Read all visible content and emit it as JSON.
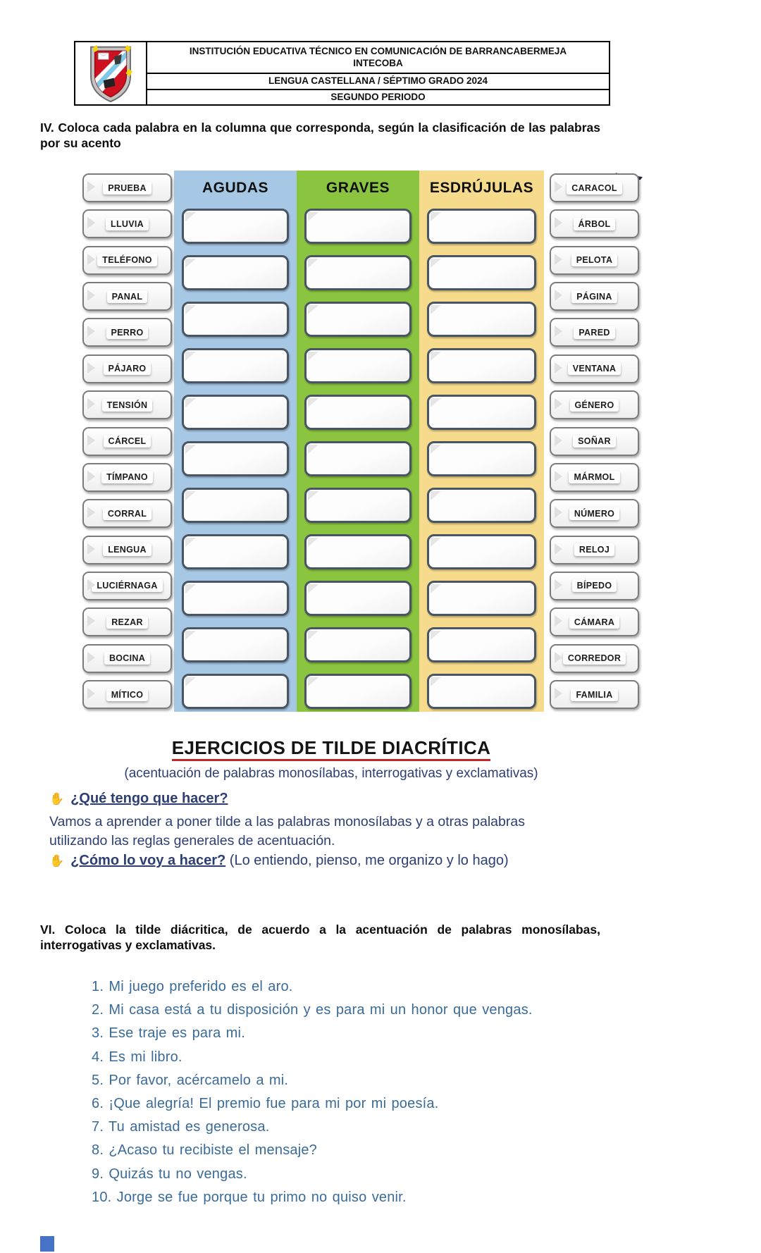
{
  "header": {
    "line1": "INSTITUCIÓN EDUCATIVA TÉCNICO EN COMUNICACIÓN DE BARRANCABERMEJA",
    "line2": "INTECOBA",
    "row2": "LENGUA CASTELLANA / SÉPTIMO GRADO 2024",
    "row3": "SEGUNDO PERIODO"
  },
  "exercise4": {
    "instruction": "IV. Coloca cada palabra en la columna que corresponda, según la clasificación de las palabras por su acento"
  },
  "board": {
    "left_words": [
      "PRUEBA",
      "LLUVIA",
      "TELÉFONO",
      "PANAL",
      "PERRO",
      "PÁJARO",
      "TENSIÓN",
      "CÁRCEL",
      "TÍMPANO",
      "CORRAL",
      "LENGUA",
      "LUCIÉRNAGA",
      "REZAR",
      "BOCINA",
      "MÍTICO"
    ],
    "right_words": [
      "CARACOL",
      "ÁRBOL",
      "PELOTA",
      "PÁGINA",
      "PARED",
      "VENTANA",
      "GÉNERO",
      "SOÑAR",
      "MÁRMOL",
      "NÚMERO",
      "RELOJ",
      "BÍPEDO",
      "CÁMARA",
      "CORREDOR",
      "FAMILIA"
    ],
    "columns": [
      {
        "key": "agudas",
        "label": "AGUDAS"
      },
      {
        "key": "graves",
        "label": "GRAVES"
      },
      {
        "key": "esdrujulas",
        "label": "ESDRÚJULAS"
      }
    ],
    "slots_per_column": 11
  },
  "section": {
    "title": "EJERCICIOS DE TILDE DIACRÍTICA",
    "subtitle": "(acentuación de palabras monosílabas, interrogativas y exclamativas)"
  },
  "guide": {
    "hand_icon": "✋",
    "q1": "¿Qué tengo que hacer?",
    "q1_body": "Vamos a aprender a poner tilde a las palabras monosílabas y a otras palabras utilizando las reglas generales de acentuación.",
    "q2": "¿Cómo lo voy a hacer?",
    "q2_rest": " (Lo entiendo, pienso, me organizo y lo hago)"
  },
  "exercise6": {
    "instruction": "VI. Coloca la tilde diácritica, de acuerdo a la acentuación de palabras monosílabas, interrogativas y exclamativas.",
    "items": [
      {
        "n": "1.",
        "text": "Mi juego preferido es el aro."
      },
      {
        "n": "2.",
        "text": "Mi casa está a tu disposición y es para mi un honor que vengas."
      },
      {
        "n": "3.",
        "text": "Ese traje es para mi."
      },
      {
        "n": "4.",
        "text": "Es mi libro."
      },
      {
        "n": "5.",
        "text": "Por favor, acércamelo a mi."
      },
      {
        "n": "6.",
        "text": "¡Que alegría! El premio fue para mi por mi poesía."
      },
      {
        "n": "7.",
        "text": "Tu amistad es generosa."
      },
      {
        "n": "8.",
        "text": "¿Acaso tu recibiste el mensaje?"
      },
      {
        "n": "9.",
        "text": "Quizás tu no vengas."
      },
      {
        "n": "10.",
        "text": "Jorge se fue porque tu primo no quiso venir."
      }
    ]
  },
  "colors": {
    "agudas_bg": "#a6c8e5",
    "graves_bg": "#8bc540",
    "esdrujulas_bg": "#f6db8d",
    "slot_border": "#4a5564",
    "title_underline": "#c22727",
    "navy_text": "#2d3e73",
    "list_text": "#3a6b99",
    "heading_text": "#0d0d0d",
    "crest_red": "#cf1020",
    "page_marker_blue": "#4673c8"
  }
}
